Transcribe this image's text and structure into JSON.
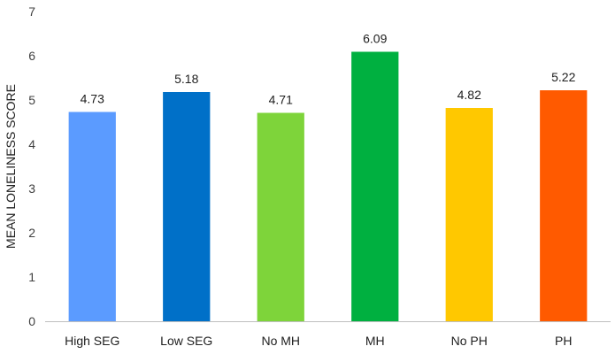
{
  "chart_data": {
    "type": "bar",
    "title": "",
    "xlabel": "",
    "ylabel": "MEAN LONELINESS SCORE",
    "ylim": [
      0,
      7
    ],
    "yticks": [
      0,
      1,
      2,
      3,
      4,
      5,
      6,
      7
    ],
    "grid": false,
    "legend": "none",
    "categories": [
      "High SEG",
      "Low SEG",
      "No MH",
      "MH",
      "No PH",
      "PH"
    ],
    "values": [
      4.73,
      5.18,
      4.71,
      6.09,
      4.82,
      5.22
    ],
    "data_labels": [
      "4.73",
      "5.18",
      "4.71",
      "6.09",
      "4.82",
      "5.22"
    ],
    "colors": [
      "#5B9BFF",
      "#0070C8",
      "#7ED43A",
      "#00B040",
      "#FFC800",
      "#FF5A00"
    ]
  }
}
